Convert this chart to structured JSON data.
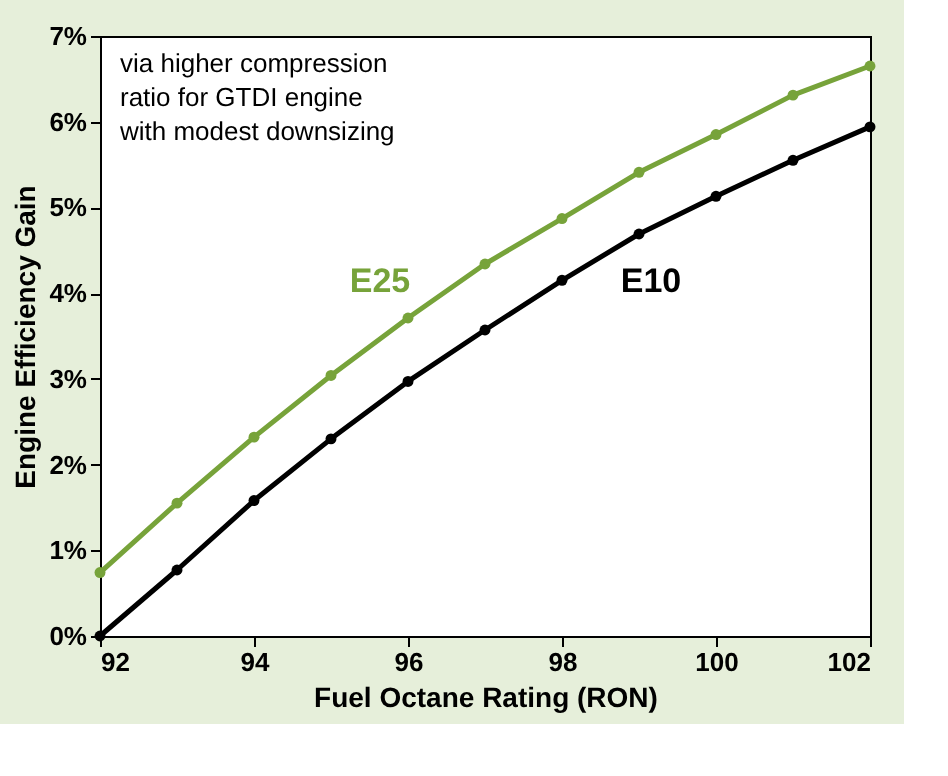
{
  "chart_data": {
    "type": "line",
    "xlabel": "Fuel Octane Rating (RON)",
    "ylabel": "Engine Efficiency Gain",
    "x": [
      92,
      93,
      94,
      95,
      96,
      97,
      98,
      99,
      100,
      101,
      102
    ],
    "series": [
      {
        "name": "E25",
        "color": "#77a33a",
        "values": [
          0.74,
          1.55,
          2.32,
          3.04,
          3.71,
          4.34,
          4.87,
          5.41,
          5.85,
          6.31,
          6.65
        ]
      },
      {
        "name": "E10",
        "color": "#000000",
        "values": [
          0,
          0.77,
          1.58,
          2.3,
          2.97,
          3.57,
          4.15,
          4.69,
          5.13,
          5.55,
          5.94
        ]
      }
    ],
    "xlim": [
      92,
      102
    ],
    "xticks": [
      92,
      94,
      96,
      98,
      100,
      102
    ],
    "ylim": [
      0,
      7
    ],
    "yticks": [
      {
        "value": 0,
        "label": "0%"
      },
      {
        "value": 1,
        "label": "1%"
      },
      {
        "value": 2,
        "label": "2%"
      },
      {
        "value": 3,
        "label": "3%"
      },
      {
        "value": 4,
        "label": "4%"
      },
      {
        "value": 5,
        "label": "5%"
      },
      {
        "value": 6,
        "label": "6%"
      },
      {
        "value": 7,
        "label": "7%"
      }
    ],
    "annotations": [
      "via higher compression\nratio for GTDI engine\nwith modest downsizing"
    ],
    "marker": "circle",
    "line_style": "solid",
    "grid": false
  }
}
